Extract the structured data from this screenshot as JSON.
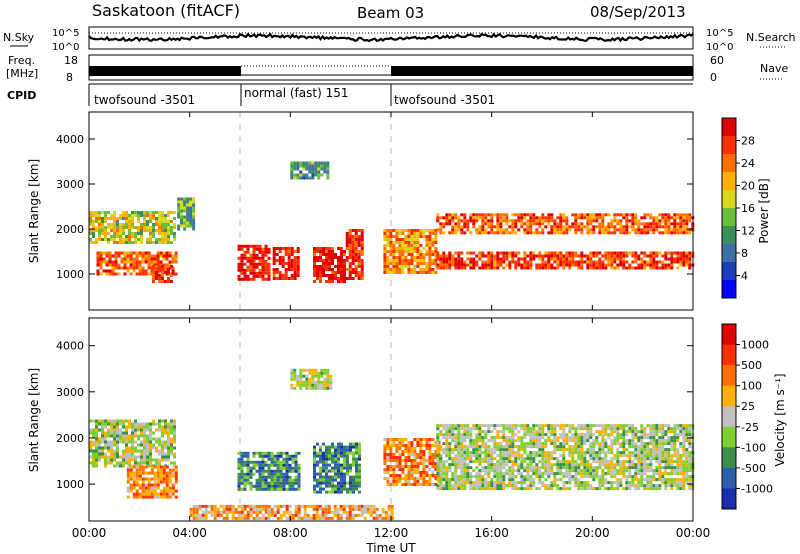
{
  "header": {
    "station": "Saskatoon (fitACF)",
    "beam": "Beam 03",
    "date": "08/Sep/2013"
  },
  "nsky_panel": {
    "label": "N.Sky",
    "right_label": "N.Search",
    "left_ticks": [
      "10^5",
      "10^0"
    ],
    "right_ticks": [
      "10^5",
      "10^0"
    ]
  },
  "freq_panel": {
    "label_1": "Freq.",
    "label_2": "[MHz]",
    "left_ticks": [
      "18",
      "8"
    ],
    "right_ticks": [
      "60",
      "0"
    ],
    "right_label": "Nave"
  },
  "cpid_panel": {
    "label": "CPID",
    "segments": [
      {
        "label": "twofsound -3501",
        "start_hour": 0,
        "end_hour": 6
      },
      {
        "label": "normal (fast) 151",
        "start_hour": 6,
        "end_hour": 12
      },
      {
        "label": "twofsound -3501",
        "start_hour": 12,
        "end_hour": 24
      }
    ]
  },
  "x_axis": {
    "label": "Time UT",
    "ticks": [
      "00:00",
      "04:00",
      "08:00",
      "12:00",
      "16:00",
      "20:00",
      "00:00"
    ],
    "range_hours": [
      0,
      24
    ]
  },
  "chart_data": [
    {
      "type": "heatmap",
      "panel": "power",
      "ylabel": "Slant Range [km]",
      "yticks": [
        1000,
        2000,
        3000,
        4000
      ],
      "ylim": [
        200,
        4600
      ],
      "colorbar": {
        "label": "Power [dB]",
        "ticks": [
          "4",
          "8",
          "12",
          "16",
          "20",
          "24",
          "28"
        ],
        "colors": [
          "#0000ff",
          "#1a3fb8",
          "#3f6fa8",
          "#3a8f5a",
          "#6abf3a",
          "#d8d820",
          "#ffb000",
          "#ff7000",
          "#ff3000",
          "#e00000"
        ]
      },
      "regions": [
        {
          "t": [
            0.0,
            3.4
          ],
          "r": [
            1700,
            2400
          ],
          "level": 0.55
        },
        {
          "t": [
            0.3,
            3.4
          ],
          "r": [
            1000,
            1500
          ],
          "level": 0.8
        },
        {
          "t": [
            2.5,
            3.3
          ],
          "r": [
            800,
            1200
          ],
          "level": 0.9
        },
        {
          "t": [
            5.9,
            7.2
          ],
          "r": [
            900,
            1650
          ],
          "level": 0.95
        },
        {
          "t": [
            7.3,
            8.3
          ],
          "r": [
            900,
            1600
          ],
          "level": 0.95
        },
        {
          "t": [
            8.9,
            10.2
          ],
          "r": [
            800,
            1600
          ],
          "level": 0.95
        },
        {
          "t": [
            10.2,
            10.8
          ],
          "r": [
            900,
            2000
          ],
          "level": 0.9
        },
        {
          "t": [
            11.7,
            13.8
          ],
          "r": [
            1000,
            2000
          ],
          "level": 0.7
        },
        {
          "t": [
            13.8,
            24.0
          ],
          "r": [
            1150,
            1500
          ],
          "level": 0.85
        },
        {
          "t": [
            13.8,
            24.0
          ],
          "r": [
            1900,
            2350
          ],
          "level": 0.8
        },
        {
          "t": [
            8.0,
            9.5
          ],
          "r": [
            3100,
            3500
          ],
          "level": 0.35
        },
        {
          "t": [
            3.5,
            4.2
          ],
          "r": [
            2000,
            2700
          ],
          "level": 0.4
        }
      ]
    },
    {
      "type": "heatmap",
      "panel": "velocity",
      "ylabel": "Slant Range [km]",
      "yticks": [
        1000,
        2000,
        3000,
        4000
      ],
      "ylim": [
        200,
        4600
      ],
      "colorbar": {
        "label": "Velocity [m s⁻¹]",
        "ticks": [
          "1000",
          "500",
          "100",
          "25",
          "-25",
          "-100",
          "-500",
          "-1000"
        ],
        "colors": [
          "#1a2fb0",
          "#2f5fa8",
          "#3a8f4a",
          "#7fcf30",
          "#bfbfbf",
          "#ffb000",
          "#ff7000",
          "#ff3000",
          "#e00000"
        ]
      },
      "regions": [
        {
          "t": [
            0.0,
            3.4
          ],
          "r": [
            1400,
            2400
          ],
          "level": 0.45
        },
        {
          "t": [
            1.5,
            3.5
          ],
          "r": [
            700,
            1400
          ],
          "level": 0.7
        },
        {
          "t": [
            5.9,
            8.3
          ],
          "r": [
            900,
            1700
          ],
          "level": 0.25
        },
        {
          "t": [
            8.9,
            10.8
          ],
          "r": [
            800,
            1900
          ],
          "level": 0.25
        },
        {
          "t": [
            11.7,
            13.9
          ],
          "r": [
            1000,
            2000
          ],
          "level": 0.7
        },
        {
          "t": [
            13.8,
            24.0
          ],
          "r": [
            900,
            2300
          ],
          "level": 0.45
        },
        {
          "t": [
            8.0,
            9.6
          ],
          "r": [
            3100,
            3500
          ],
          "level": 0.45
        },
        {
          "t": [
            4.0,
            12.0
          ],
          "r": [
            250,
            550
          ],
          "level": 0.65
        }
      ]
    }
  ]
}
